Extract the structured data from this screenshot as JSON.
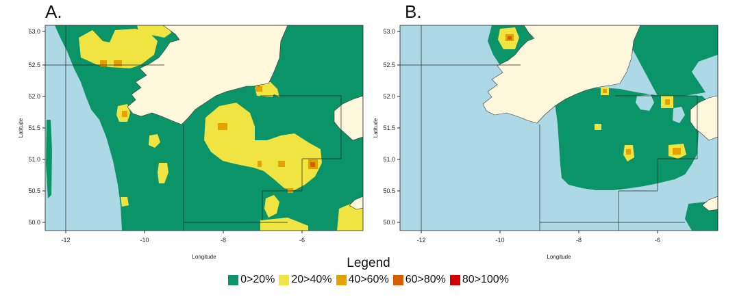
{
  "panels": [
    {
      "label": "A.",
      "xlabel": "Longitude",
      "ylabel": "Latitude",
      "xticks": [
        "-12",
        "-10",
        "-8",
        "-6"
      ],
      "yticks": [
        "53.0",
        "52.5",
        "52.0",
        "51.5",
        "51.0",
        "50.5",
        "50.0"
      ]
    },
    {
      "label": "B.",
      "xlabel": "Longitude",
      "ylabel": "Latitude",
      "xticks": [
        "-12",
        "-10",
        "-8",
        "-6"
      ],
      "yticks": [
        "53.0",
        "52.5",
        "52.0",
        "51.5",
        "51.0",
        "50.5",
        "50.0"
      ]
    }
  ],
  "legend": {
    "title": "Legend",
    "items": [
      {
        "label": "0>20%",
        "color": "#0a9467"
      },
      {
        "label": "20>40%",
        "color": "#f0e442"
      },
      {
        "label": "40>60%",
        "color": "#e5a100"
      },
      {
        "label": "60>80%",
        "color": "#d55e00"
      },
      {
        "label": "80>100%",
        "color": "#d10000"
      }
    ]
  },
  "colors": {
    "sea": "#add8e6",
    "land": "#fff8dc",
    "class1": "#0a9467",
    "class2": "#f0e442",
    "class3": "#e5a100",
    "class4": "#d55e00"
  }
}
